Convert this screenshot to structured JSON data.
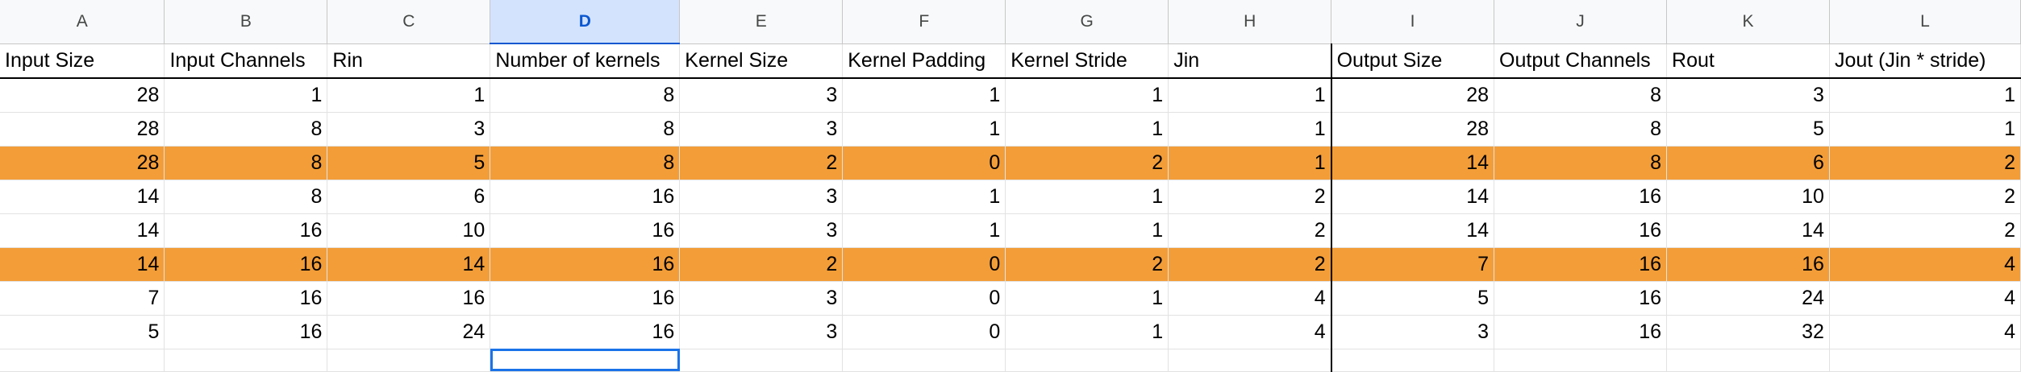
{
  "columns": [
    "A",
    "B",
    "C",
    "D",
    "E",
    "F",
    "G",
    "H",
    "I",
    "J",
    "K",
    "L"
  ],
  "selected_column": "D",
  "headers": [
    "Input Size",
    "Input Channels",
    "Rin",
    "Number of kernels",
    "Kernel Size",
    "Kernel Padding",
    "Kernel Stride",
    "Jin",
    "Output Size",
    "Output Channels",
    "Rout",
    "Jout (Jin * stride)"
  ],
  "rows": [
    {
      "highlight": false,
      "cells": [
        "28",
        "1",
        "1",
        "8",
        "3",
        "1",
        "1",
        "1",
        "28",
        "8",
        "3",
        "1"
      ]
    },
    {
      "highlight": false,
      "cells": [
        "28",
        "8",
        "3",
        "8",
        "3",
        "1",
        "1",
        "1",
        "28",
        "8",
        "5",
        "1"
      ]
    },
    {
      "highlight": true,
      "cells": [
        "28",
        "8",
        "5",
        "8",
        "2",
        "0",
        "2",
        "1",
        "14",
        "8",
        "6",
        "2"
      ]
    },
    {
      "highlight": false,
      "cells": [
        "14",
        "8",
        "6",
        "16",
        "3",
        "1",
        "1",
        "2",
        "14",
        "16",
        "10",
        "2"
      ]
    },
    {
      "highlight": false,
      "cells": [
        "14",
        "16",
        "10",
        "16",
        "3",
        "1",
        "1",
        "2",
        "14",
        "16",
        "14",
        "2"
      ]
    },
    {
      "highlight": true,
      "cells": [
        "14",
        "16",
        "14",
        "16",
        "2",
        "0",
        "2",
        "2",
        "7",
        "16",
        "16",
        "4"
      ]
    },
    {
      "highlight": false,
      "cells": [
        "7",
        "16",
        "16",
        "16",
        "3",
        "0",
        "1",
        "4",
        "5",
        "16",
        "24",
        "4"
      ]
    },
    {
      "highlight": false,
      "cells": [
        "5",
        "16",
        "24",
        "16",
        "3",
        "0",
        "1",
        "4",
        "3",
        "16",
        "32",
        "4"
      ]
    }
  ],
  "colors": {
    "highlight": "#f29d38",
    "selected_header": "#d3e3fd",
    "active_border": "#1a73e8"
  }
}
